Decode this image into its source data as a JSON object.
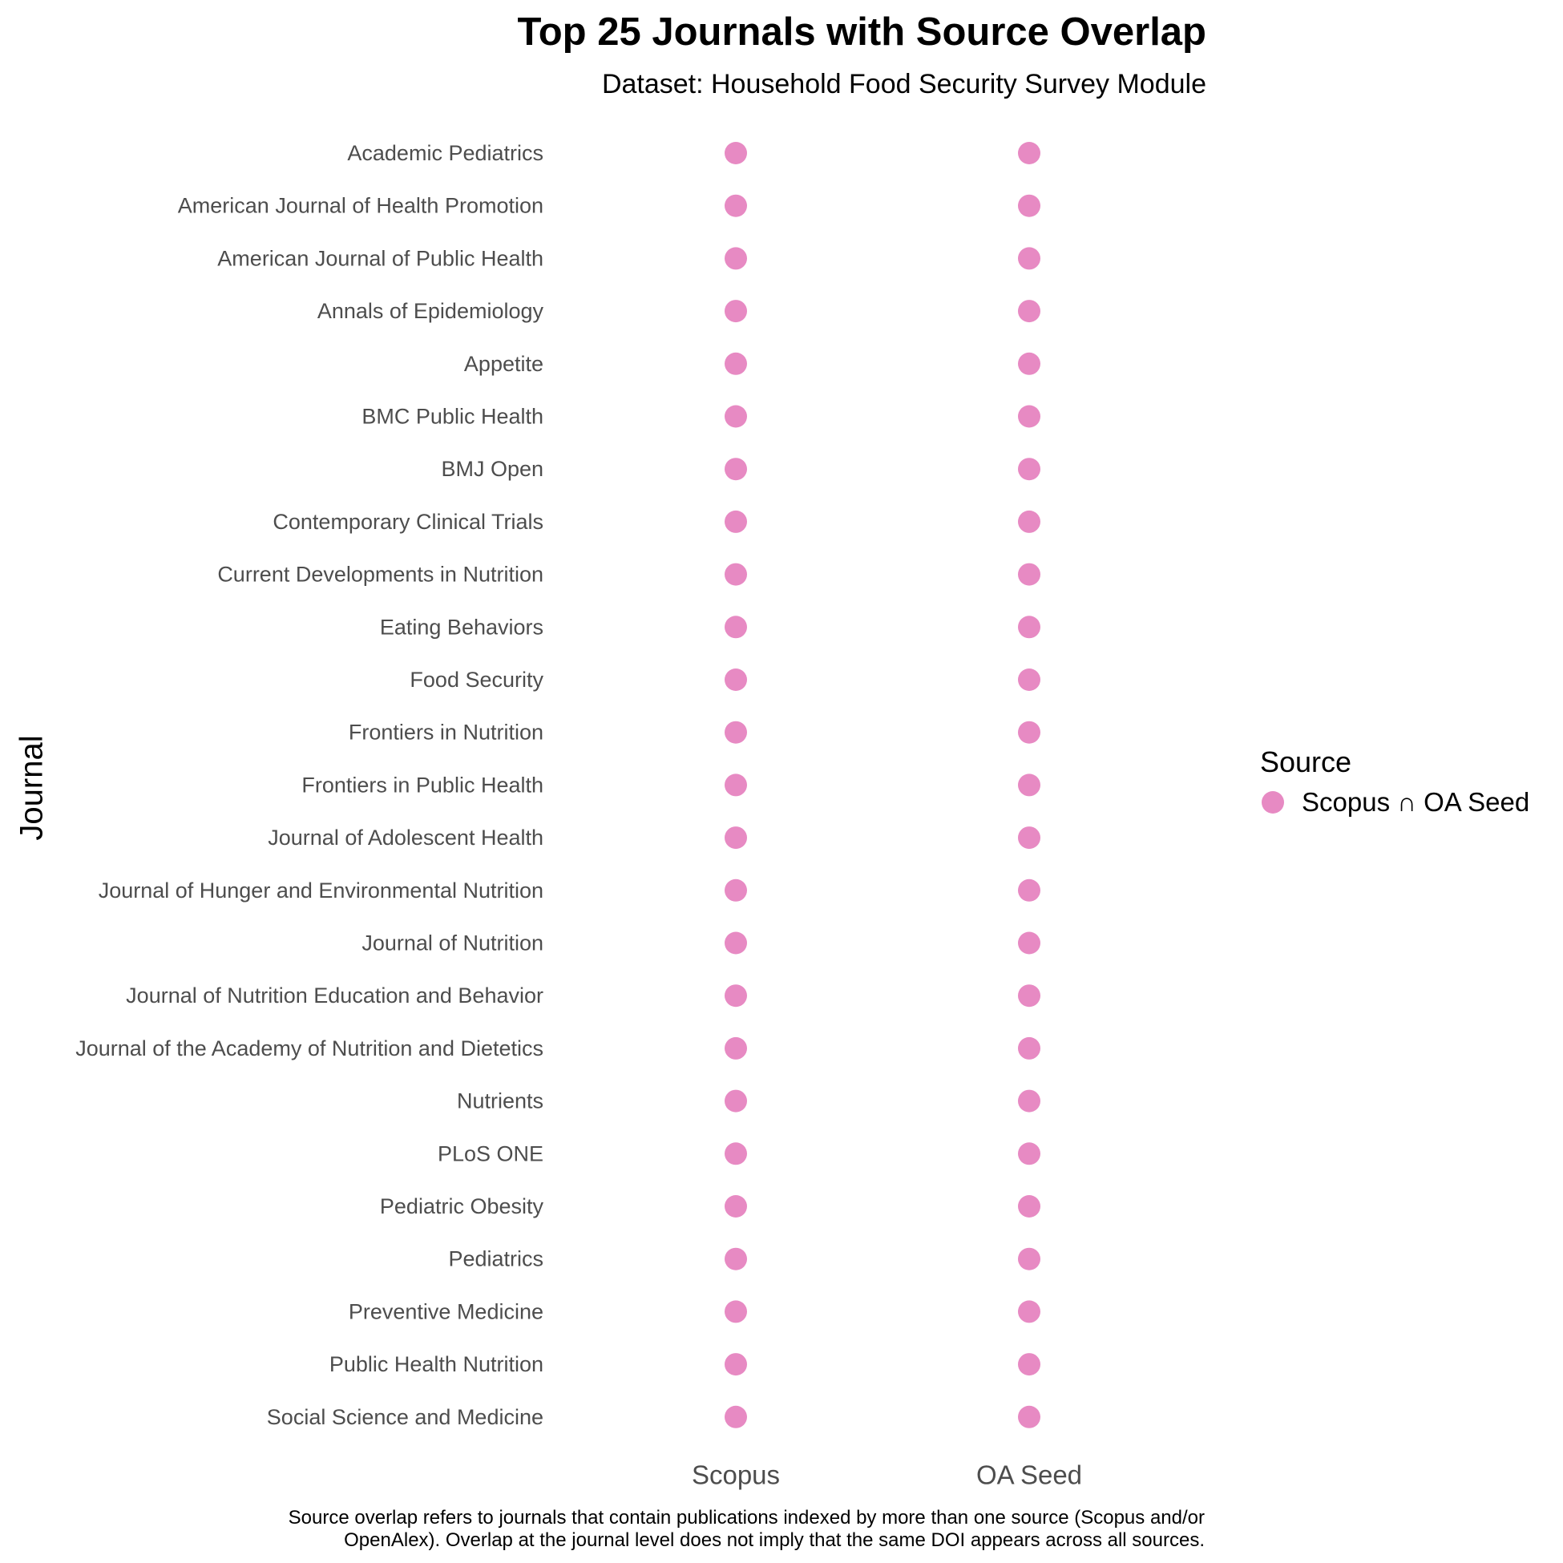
{
  "chart_data": {
    "type": "scatter",
    "title": "Top 25 Journals with Source Overlap",
    "subtitle": "Dataset: Household Food Security Survey Module",
    "xlabel": "",
    "ylabel": "Journal",
    "x_categories": [
      "Scopus",
      "OA Seed"
    ],
    "y_categories": [
      "Academic Pediatrics",
      "American Journal of Health Promotion",
      "American Journal of Public Health",
      "Annals of Epidemiology",
      "Appetite",
      "BMC Public Health",
      "BMJ Open",
      "Contemporary Clinical Trials",
      "Current Developments in Nutrition",
      "Eating Behaviors",
      "Food Security",
      "Frontiers in Nutrition",
      "Frontiers in Public Health",
      "Journal of Adolescent Health",
      "Journal of Hunger and Environmental Nutrition",
      "Journal of Nutrition",
      "Journal of Nutrition Education and Behavior",
      "Journal of the Academy of Nutrition and Dietetics",
      "Nutrients",
      "PLoS ONE",
      "Pediatric Obesity",
      "Pediatrics",
      "Preventive Medicine",
      "Public Health Nutrition",
      "Social Science and Medicine"
    ],
    "series": [
      {
        "name": "Scopus ∩ OA Seed",
        "color": "#e78ac3",
        "present_in": [
          "Scopus",
          "OA Seed"
        ],
        "all_journals": true
      }
    ],
    "legend": {
      "title": "Source",
      "position": "right"
    },
    "grid": false,
    "caption": [
      "Source overlap refers to journals that contain publications indexed by more than one source (Scopus and/or",
      "OpenAlex). Overlap at the journal level does not imply that the same DOI appears across all sources."
    ]
  }
}
